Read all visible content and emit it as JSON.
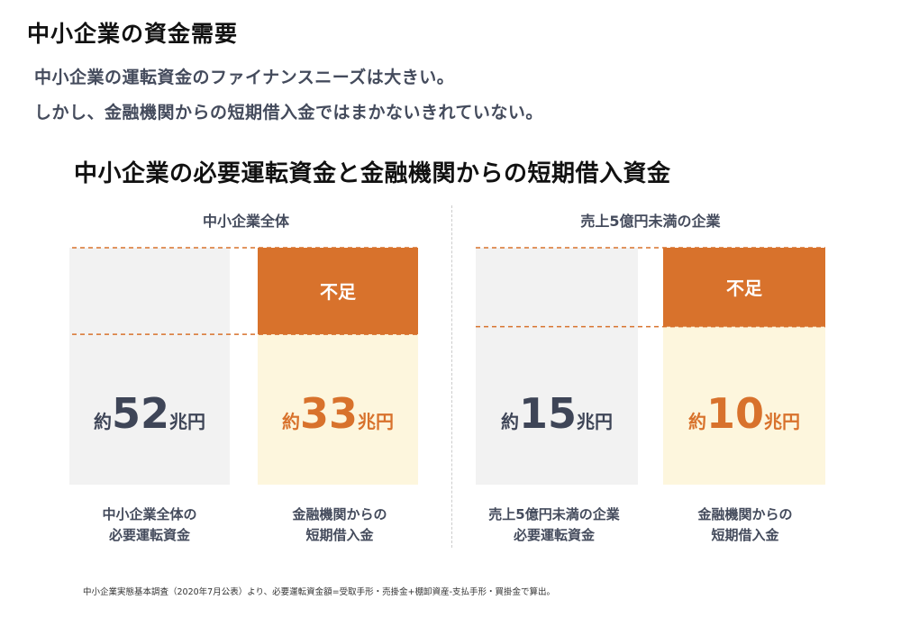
{
  "header": {
    "title": "中小企業の資金需要",
    "intro_lines": [
      "中小企業の運転資金のファイナンスニーズは大きい。",
      "しかし、金融機関からの短期借入金ではまかないきれていない。"
    ]
  },
  "footnote": "中小企業実態基本調査（2020年7月公表）より、必要運転資金額=受取手形・売掛金+棚卸資産-支払手形・買掛金で算出。",
  "chart_data": {
    "type": "bar",
    "title": "中小企業の必要運転資金と金融機関からの短期借入資金",
    "shortfall_label": "不足",
    "value_prefix": "約",
    "unit": "兆円",
    "groups": [
      {
        "title": "中小企業全体",
        "bars": [
          {
            "label_lines": [
              "中小企業全体の",
              "必要運転資金"
            ],
            "value": 52,
            "color": "#f2f2f2"
          },
          {
            "label_lines": [
              "金融機関からの",
              "短期借入金"
            ],
            "value": 33,
            "color": "#fdf6dd"
          }
        ],
        "shortfall_color": "#d8722c"
      },
      {
        "title": "売上5億円未満の企業",
        "bars": [
          {
            "label_lines": [
              "売上5億円未満の企業",
              "必要運転資金"
            ],
            "value": 15,
            "color": "#f2f2f2"
          },
          {
            "label_lines": [
              "金融機関からの",
              "短期借入金"
            ],
            "value": 10,
            "color": "#fdf6dd"
          }
        ],
        "shortfall_color": "#d8722c"
      }
    ],
    "colors": {
      "value_dark": "#3e4557",
      "value_accent": "#d8722c",
      "dashed_line": "#d8722c",
      "shortfall_text": "#ffffff"
    }
  }
}
